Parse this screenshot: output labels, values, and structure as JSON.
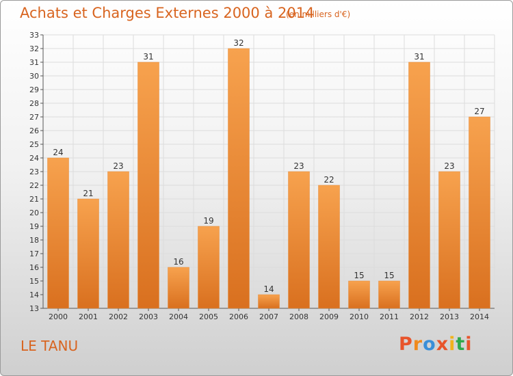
{
  "header": {
    "title": "Achats et Charges Externes 2000 à 2014",
    "unit": "(en milliers d'€)"
  },
  "footer": {
    "location": "LE TANU",
    "logo": "Proxiti"
  },
  "colors": {
    "bar_top": "#f7a24e",
    "bar_bottom": "#d9701f",
    "title": "#d8641f",
    "logo_letters": [
      "#e8542b",
      "#f08a1c",
      "#3a8fd8",
      "#e8542b",
      "#f0b21c",
      "#2ea84a",
      "#e8542b"
    ]
  },
  "chart_data": {
    "type": "bar",
    "title": "Achats et Charges Externes 2000 à 2014",
    "xlabel": "",
    "ylabel": "",
    "categories": [
      "2000",
      "2001",
      "2002",
      "2003",
      "2004",
      "2005",
      "2006",
      "2007",
      "2008",
      "2009",
      "2010",
      "2011",
      "2012",
      "2013",
      "2014"
    ],
    "values": [
      24,
      21,
      23,
      31,
      16,
      19,
      32,
      14,
      23,
      22,
      15,
      15,
      31,
      23,
      27
    ],
    "ylim": [
      13,
      33
    ],
    "yticks": [
      13,
      14,
      15,
      16,
      17,
      18,
      19,
      20,
      21,
      22,
      23,
      24,
      25,
      26,
      27,
      28,
      29,
      30,
      31,
      32,
      33
    ],
    "grid": true,
    "data_labels": true
  }
}
